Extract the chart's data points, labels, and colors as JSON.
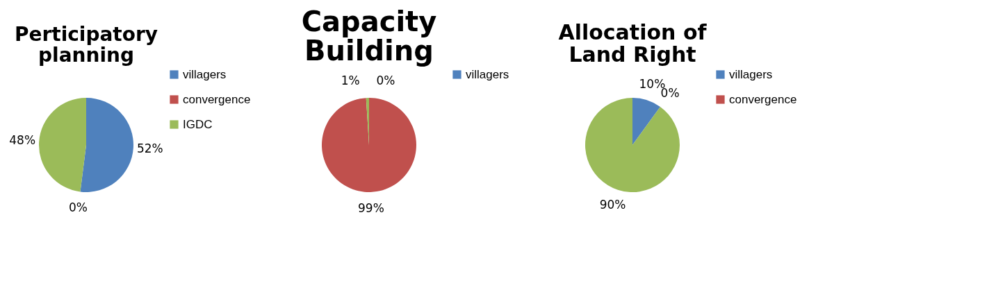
{
  "chart_data": [
    {
      "type": "pie",
      "title": "Perticipatory planning",
      "categories": [
        "villagers",
        "convergence",
        "IGDC"
      ],
      "values": [
        52,
        0,
        48
      ],
      "colors": [
        "#4f81bd",
        "#c0504d",
        "#9bbb59"
      ],
      "value_labels": [
        "52%",
        "0%",
        "48%"
      ],
      "legend": "right"
    },
    {
      "type": "pie",
      "title": "Capacity Building",
      "categories": [
        "villagers",
        null,
        null
      ],
      "values": [
        0,
        99,
        1
      ],
      "colors": [
        "#4f81bd",
        "#c0504d",
        "#9bbb59"
      ],
      "value_labels": [
        "0%",
        "99%",
        "1%"
      ],
      "legend": "right"
    },
    {
      "type": "pie",
      "title": "Allocation of Land Right",
      "categories": [
        "villagers",
        "convergence",
        null
      ],
      "values": [
        10,
        0,
        90
      ],
      "colors": [
        "#4f81bd",
        "#c0504d",
        "#9bbb59"
      ],
      "value_labels": [
        "10%",
        "0%",
        "90%"
      ],
      "legend": "right"
    }
  ]
}
